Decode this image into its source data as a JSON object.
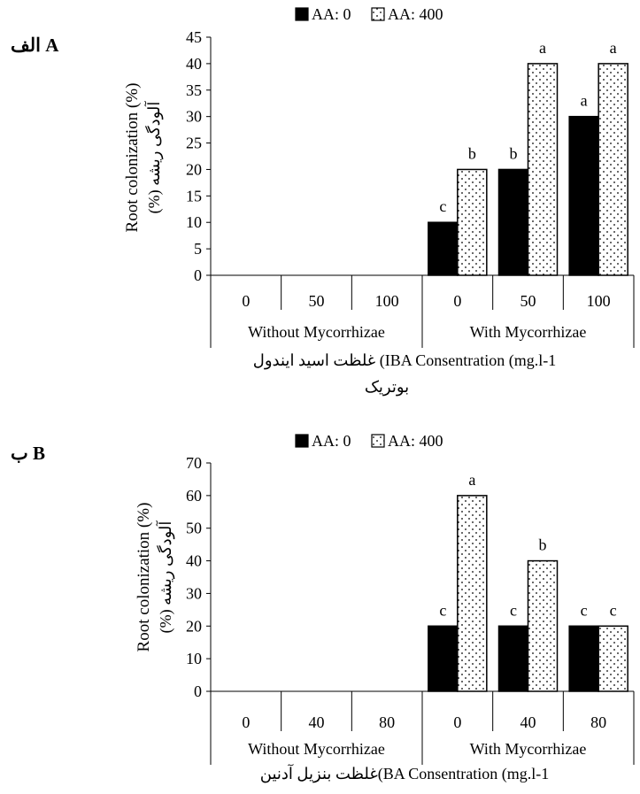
{
  "chart_data": [
    {
      "type": "bar",
      "panel_label": "الف A",
      "legend": [
        {
          "label": "AA: 0",
          "pattern": "solid"
        },
        {
          "label": "AA: 400",
          "pattern": "dots"
        }
      ],
      "legend_position": "top",
      "ylabel_en": "Root colonization (%)",
      "ylabel_fa": "(%) آلودگی ریشه",
      "yticks": [
        0,
        5,
        10,
        15,
        20,
        25,
        30,
        35,
        40,
        45
      ],
      "ylim": [
        0,
        45
      ],
      "grid": false,
      "categories": [
        "0",
        "50",
        "100",
        "0",
        "50",
        "100"
      ],
      "groups": [
        "Without Mycorrhizae",
        "With Mycorrhizae"
      ],
      "xlabel_line1": "غلظت اسید ایندول (IBA Consentration (mg.l-1",
      "xlabel_line2": "بوتریک",
      "series": [
        {
          "name": "AA: 0",
          "values": [
            0,
            0,
            0,
            10,
            20,
            30
          ],
          "letters": [
            "",
            "",
            "",
            "c",
            "b",
            "a"
          ]
        },
        {
          "name": "AA: 400",
          "values": [
            0,
            0,
            0,
            20,
            40,
            40
          ],
          "letters": [
            "",
            "",
            "",
            "b",
            "a",
            "a"
          ]
        }
      ]
    },
    {
      "type": "bar",
      "panel_label": "ب B",
      "legend": [
        {
          "label": "AA: 0",
          "pattern": "solid"
        },
        {
          "label": "AA: 400",
          "pattern": "dots"
        }
      ],
      "legend_position": "top",
      "ylabel_en": "Root colonization (%)",
      "ylabel_fa": "(%) آلودگی ریشه",
      "yticks": [
        0,
        10,
        20,
        30,
        40,
        50,
        60,
        70
      ],
      "ylim": [
        0,
        70
      ],
      "grid": false,
      "categories": [
        "0",
        "40",
        "80",
        "0",
        "40",
        "80"
      ],
      "groups": [
        "Without Mycorrhizae",
        "With Mycorrhizae"
      ],
      "xlabel_line1": "غلظت بنزیل آدنین(BA Consentration (mg.l-1",
      "xlabel_line2": "",
      "series": [
        {
          "name": "AA: 0",
          "values": [
            0,
            0,
            0,
            20,
            20,
            20
          ],
          "letters": [
            "",
            "",
            "",
            "c",
            "c",
            "c"
          ]
        },
        {
          "name": "AA: 400",
          "values": [
            0,
            0,
            0,
            60,
            40,
            20
          ],
          "letters": [
            "",
            "",
            "",
            "a",
            "b",
            "c"
          ]
        }
      ]
    }
  ]
}
